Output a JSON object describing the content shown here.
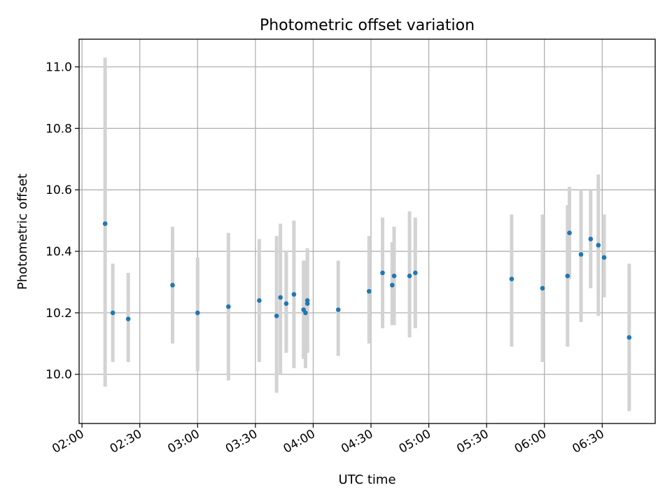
{
  "chart_data": {
    "type": "scatter",
    "title": "Photometric offset variation",
    "xlabel": "UTC time",
    "ylabel": "Photometric offset",
    "x_unit": "time of day (HH:MM, UTC)",
    "xlim": [
      "01:58:30",
      "06:57:30"
    ],
    "ylim": [
      9.84,
      11.09
    ],
    "x_ticks": [
      "02:00",
      "02:30",
      "03:00",
      "03:30",
      "04:00",
      "04:30",
      "05:00",
      "05:30",
      "06:00",
      "06:30"
    ],
    "y_ticks": [
      10.0,
      10.2,
      10.4,
      10.6,
      10.8,
      11.0
    ],
    "y_tick_labels": [
      "10.0",
      "10.2",
      "10.4",
      "10.6",
      "10.8",
      "11.0"
    ],
    "grid": true,
    "colors": {
      "point": "#1f77b4",
      "errorbar": "#d3d3d3",
      "grid": "#b0b0b0"
    },
    "points": [
      {
        "x": "02:12",
        "y": 10.49,
        "ylow": 9.96,
        "yhigh": 11.03
      },
      {
        "x": "02:16",
        "y": 10.2,
        "ylow": 10.04,
        "yhigh": 10.36
      },
      {
        "x": "02:24",
        "y": 10.18,
        "ylow": 10.04,
        "yhigh": 10.33
      },
      {
        "x": "02:47",
        "y": 10.29,
        "ylow": 10.1,
        "yhigh": 10.48
      },
      {
        "x": "03:00",
        "y": 10.2,
        "ylow": 10.01,
        "yhigh": 10.38
      },
      {
        "x": "03:16",
        "y": 10.22,
        "ylow": 9.98,
        "yhigh": 10.46
      },
      {
        "x": "03:32",
        "y": 10.24,
        "ylow": 10.04,
        "yhigh": 10.44
      },
      {
        "x": "03:41",
        "y": 10.19,
        "ylow": 9.94,
        "yhigh": 10.45
      },
      {
        "x": "03:43",
        "y": 10.25,
        "ylow": 10.0,
        "yhigh": 10.49
      },
      {
        "x": "03:46",
        "y": 10.23,
        "ylow": 10.07,
        "yhigh": 10.4
      },
      {
        "x": "03:50",
        "y": 10.26,
        "ylow": 10.02,
        "yhigh": 10.5
      },
      {
        "x": "03:55",
        "y": 10.21,
        "ylow": 10.05,
        "yhigh": 10.37
      },
      {
        "x": "03:56",
        "y": 10.2,
        "ylow": 10.02,
        "yhigh": 10.37
      },
      {
        "x": "03:57",
        "y": 10.24,
        "ylow": 10.07,
        "yhigh": 10.41
      },
      {
        "x": "03:57",
        "y": 10.23,
        "ylow": 10.07,
        "yhigh": 10.4
      },
      {
        "x": "04:13",
        "y": 10.21,
        "ylow": 10.06,
        "yhigh": 10.37
      },
      {
        "x": "04:29",
        "y": 10.27,
        "ylow": 10.1,
        "yhigh": 10.45
      },
      {
        "x": "04:36",
        "y": 10.33,
        "ylow": 10.15,
        "yhigh": 10.51
      },
      {
        "x": "04:41",
        "y": 10.29,
        "ylow": 10.16,
        "yhigh": 10.43
      },
      {
        "x": "04:42",
        "y": 10.32,
        "ylow": 10.16,
        "yhigh": 10.48
      },
      {
        "x": "04:50",
        "y": 10.32,
        "ylow": 10.12,
        "yhigh": 10.53
      },
      {
        "x": "04:53",
        "y": 10.33,
        "ylow": 10.15,
        "yhigh": 10.51
      },
      {
        "x": "05:43",
        "y": 10.31,
        "ylow": 10.09,
        "yhigh": 10.52
      },
      {
        "x": "05:59",
        "y": 10.28,
        "ylow": 10.04,
        "yhigh": 10.52
      },
      {
        "x": "06:12",
        "y": 10.32,
        "ylow": 10.09,
        "yhigh": 10.55
      },
      {
        "x": "06:13",
        "y": 10.46,
        "ylow": 10.31,
        "yhigh": 10.61
      },
      {
        "x": "06:19",
        "y": 10.39,
        "ylow": 10.17,
        "yhigh": 10.6
      },
      {
        "x": "06:24",
        "y": 10.44,
        "ylow": 10.28,
        "yhigh": 10.6
      },
      {
        "x": "06:28",
        "y": 10.42,
        "ylow": 10.19,
        "yhigh": 10.65
      },
      {
        "x": "06:31",
        "y": 10.38,
        "ylow": 10.25,
        "yhigh": 10.52
      },
      {
        "x": "06:44",
        "y": 10.12,
        "ylow": 9.88,
        "yhigh": 10.36
      }
    ]
  }
}
